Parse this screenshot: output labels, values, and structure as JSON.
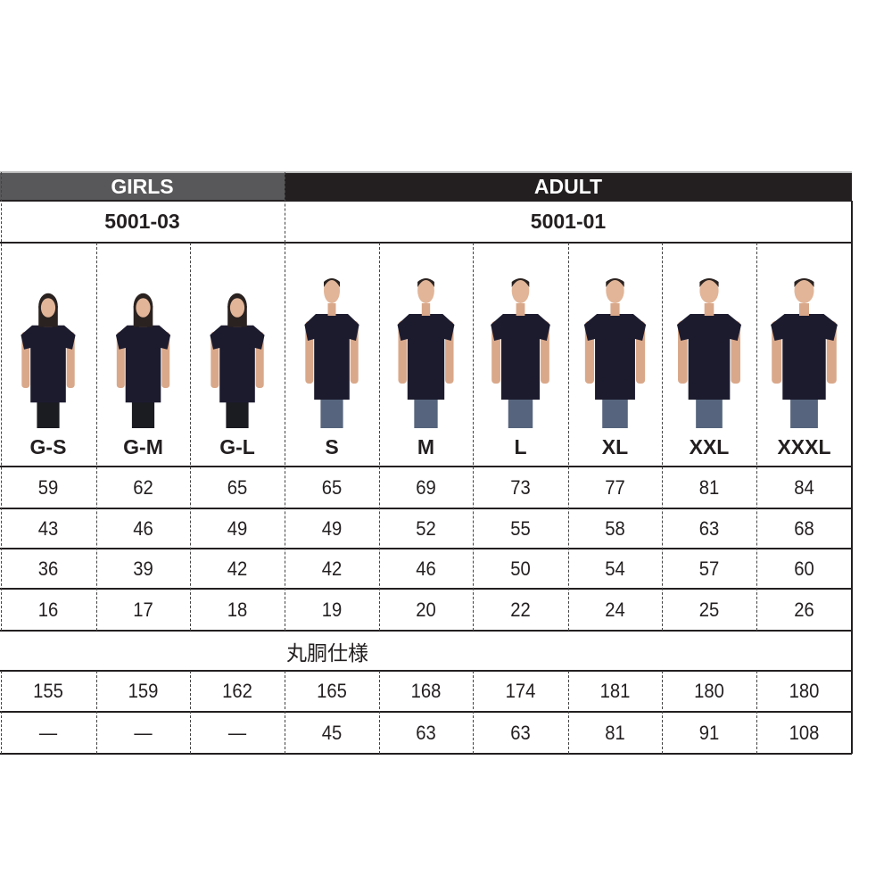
{
  "groups": [
    {
      "label": "GIRLS",
      "model": "5001-03"
    },
    {
      "label": "ADULT",
      "model": "5001-01"
    }
  ],
  "sizes": [
    "G-S",
    "G-M",
    "G-L",
    "S",
    "M",
    "L",
    "XL",
    "XXL",
    "XXXL"
  ],
  "rows": [
    [
      "59",
      "62",
      "65",
      "65",
      "69",
      "73",
      "77",
      "81",
      "84"
    ],
    [
      "43",
      "46",
      "49",
      "49",
      "52",
      "55",
      "58",
      "63",
      "68"
    ],
    [
      "36",
      "39",
      "42",
      "42",
      "46",
      "50",
      "54",
      "57",
      "60"
    ],
    [
      "16",
      "17",
      "18",
      "19",
      "20",
      "22",
      "24",
      "25",
      "26"
    ]
  ],
  "note": "丸胴仕様",
  "model_rows": [
    [
      "155",
      "159",
      "162",
      "165",
      "168",
      "174",
      "181",
      "180",
      "180"
    ],
    [
      "—",
      "—",
      "—",
      "45",
      "63",
      "63",
      "81",
      "91",
      "108"
    ]
  ],
  "colors": {
    "girls_header": "#58585a",
    "adult_header": "#231f20",
    "shirt": "#1c1b2e"
  },
  "photo_models": [
    "girl",
    "girl",
    "girl",
    "man",
    "man",
    "man",
    "man",
    "man",
    "man"
  ]
}
